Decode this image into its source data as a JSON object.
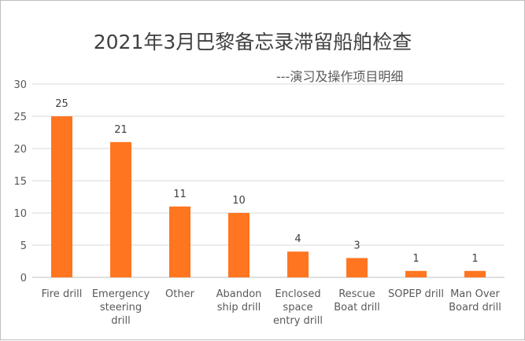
{
  "chart_data": {
    "type": "bar",
    "title": "2021年3月巴黎备忘录滞留船舶检查",
    "subtitle": "---演习及操作项目明细",
    "categories": [
      [
        "Fire drill"
      ],
      [
        "Emergency",
        "steering",
        "drill"
      ],
      [
        "Other"
      ],
      [
        "Abandon",
        "ship drill"
      ],
      [
        "Enclosed",
        "space",
        "entry drill"
      ],
      [
        "Rescue",
        "Boat drill"
      ],
      [
        "SOPEP drill"
      ],
      [
        "Man Over",
        "Board drill"
      ]
    ],
    "values": [
      25,
      21,
      11,
      10,
      4,
      3,
      1,
      1
    ],
    "ylim": [
      0,
      30
    ],
    "yticks": [
      0,
      5,
      10,
      15,
      20,
      25,
      30
    ],
    "grid": true,
    "bar_color": "#ff7520",
    "grid_color": "#d9d9d9"
  }
}
